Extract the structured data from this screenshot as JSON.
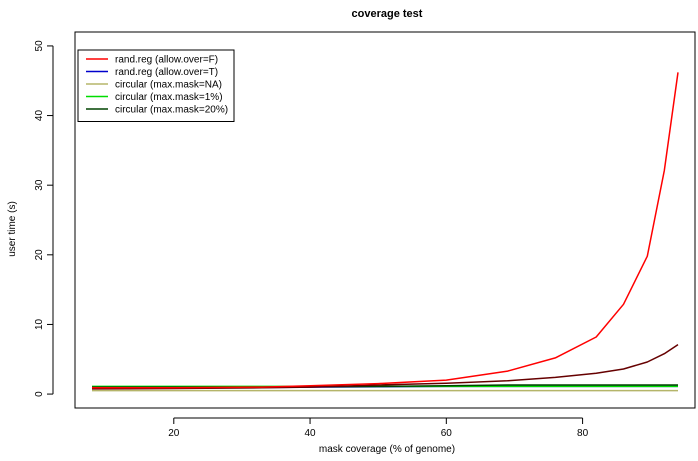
{
  "chart_data": {
    "type": "line",
    "title": "coverage test",
    "xlabel": "mask coverage (% of genome)",
    "ylabel": "user time (s)",
    "xlim": [
      5.5,
      96.5
    ],
    "ylim": [
      -2,
      52
    ],
    "xticks": [
      20,
      40,
      60,
      80
    ],
    "yticks": [
      0,
      10,
      20,
      30,
      40,
      50
    ],
    "grid": false,
    "legend_position": "top-left",
    "series": [
      {
        "name": "rand.reg (allow.over=F)",
        "color": "#ff0000",
        "x": [
          8,
          20,
          33,
          40,
          50,
          60,
          69,
          76,
          82,
          86,
          89.5,
          92,
          94
        ],
        "y": [
          0.9,
          0.9,
          1.0,
          1.2,
          1.5,
          2.0,
          3.3,
          5.2,
          8.2,
          12.9,
          19.8,
          32.1,
          46.2
        ]
      },
      {
        "name": "rand.reg (allow.over=T)",
        "color": "#0000cc",
        "x": [
          8,
          20,
          33,
          40,
          50,
          60,
          69,
          76,
          82,
          86,
          89.5,
          92,
          94
        ],
        "y": [
          0.85,
          0.85,
          0.95,
          1.0,
          1.05,
          1.1,
          1.1,
          1.1,
          1.1,
          1.1,
          1.1,
          1.1,
          1.1
        ]
      },
      {
        "name": "circular (max.mask=NA)",
        "color": "#b5b56a",
        "x": [
          8,
          20,
          33,
          40,
          50,
          60,
          69,
          76,
          82,
          86,
          89.5,
          92,
          94
        ],
        "y": [
          0.5,
          0.5,
          0.5,
          0.5,
          0.5,
          0.5,
          0.5,
          0.5,
          0.5,
          0.5,
          0.5,
          0.5,
          0.5
        ]
      },
      {
        "name": "circular (max.mask=1%)",
        "color": "#00dd00",
        "x": [
          8,
          20,
          33,
          40,
          50,
          60,
          69,
          76,
          82,
          86,
          89.5,
          92,
          94
        ],
        "y": [
          1.1,
          1.1,
          1.1,
          1.1,
          1.1,
          1.1,
          1.1,
          1.1,
          1.1,
          1.1,
          1.1,
          1.1,
          1.1
        ]
      },
      {
        "name": "circular (max.mask=20%)",
        "color": "#004400",
        "x": [
          8,
          20,
          33,
          40,
          50,
          60,
          69,
          76,
          82,
          86,
          89.5,
          92,
          94
        ],
        "y": [
          1.0,
          1.0,
          1.0,
          1.05,
          1.1,
          1.2,
          1.3,
          1.3,
          1.3,
          1.3,
          1.3,
          1.3,
          1.3
        ]
      },
      {
        "name": "",
        "color": "#660000",
        "x": [
          8,
          20,
          33,
          40,
          50,
          60,
          69,
          76,
          82,
          86,
          89.5,
          92,
          94
        ],
        "y": [
          0.75,
          0.8,
          0.9,
          1.0,
          1.3,
          1.55,
          1.9,
          2.4,
          3.0,
          3.6,
          4.6,
          5.8,
          7.1
        ]
      }
    ]
  }
}
